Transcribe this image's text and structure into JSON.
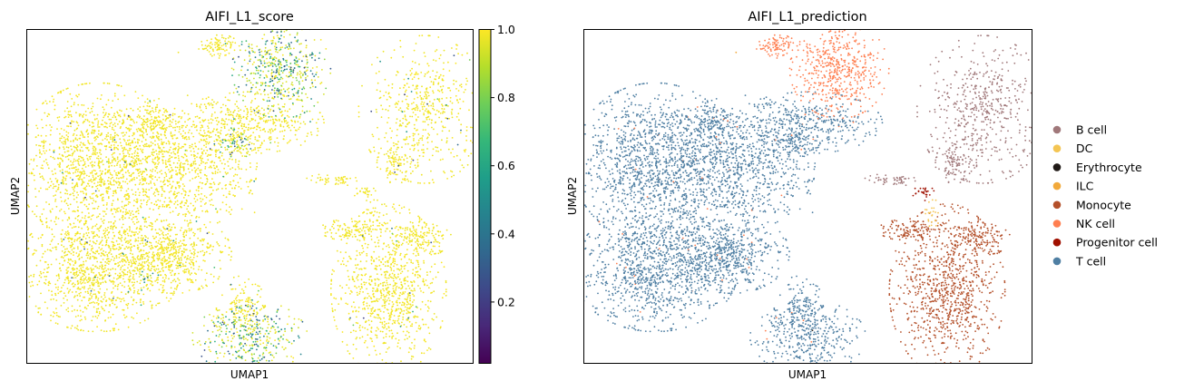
{
  "chart_data": [
    {
      "type": "scatter",
      "title": "AIFI_L1_score",
      "xlabel": "UMAP1",
      "ylabel": "UMAP2",
      "grid": false,
      "color_mode": "continuous",
      "colormap": "viridis",
      "colorbar": {
        "range": [
          0.02,
          1.0
        ],
        "ticks": [
          0.2,
          0.4,
          0.6,
          0.8,
          1.0
        ],
        "tick_labels": [
          "0.2",
          "0.4",
          "0.6",
          "0.8",
          "1.0"
        ],
        "colors": [
          "#440154",
          "#482878",
          "#3e4989",
          "#31688e",
          "#26828e",
          "#1f9e89",
          "#35b779",
          "#6ece58",
          "#b5de2b",
          "#fde725"
        ]
      },
      "xlim": [
        0,
        100
      ],
      "ylim": [
        0,
        100
      ],
      "clusters": [
        {
          "name": "T cell",
          "cx": 16,
          "cy": 60,
          "rx": 10,
          "ry": 13,
          "n": 1300,
          "score_mean": 0.99
        },
        {
          "name": "T cell",
          "cx": 16,
          "cy": 28,
          "rx": 10,
          "ry": 10,
          "n": 1100,
          "score_mean": 0.99
        },
        {
          "name": "T cell",
          "cx": 33,
          "cy": 33,
          "rx": 7,
          "ry": 6.5,
          "n": 550,
          "score_mean": 0.99
        },
        {
          "name": "T cell",
          "cx": 35,
          "cy": 60,
          "rx": 9,
          "ry": 11,
          "n": 600,
          "score_mean": 0.98
        },
        {
          "name": "T cell",
          "cx": 29,
          "cy": 73,
          "rx": 4,
          "ry": 3,
          "n": 120,
          "score_mean": 0.98
        },
        {
          "name": "T cell",
          "cx": 50,
          "cy": 72,
          "rx": 9,
          "ry": 5,
          "n": 400,
          "score_mean": 0.97
        },
        {
          "name": "NK cell",
          "cx": 57,
          "cy": 88,
          "rx": 6,
          "ry": 8,
          "n": 500,
          "score_mean": 0.93
        },
        {
          "name": "NK cell",
          "cx": 43,
          "cy": 95,
          "rx": 2.5,
          "ry": 2,
          "n": 90,
          "score_mean": 0.95
        },
        {
          "name": "T cell",
          "cx": 47,
          "cy": 66,
          "rx": 2.5,
          "ry": 2.5,
          "n": 70,
          "score_mean": 0.85
        },
        {
          "name": "T cell",
          "cx": 48,
          "cy": 17,
          "rx": 3,
          "ry": 5,
          "n": 130,
          "score_mean": 0.95
        },
        {
          "name": "T cell",
          "cx": 50,
          "cy": 8,
          "rx": 7,
          "ry": 6,
          "n": 380,
          "score_mean": 0.85
        },
        {
          "name": "T cell",
          "cx": 27,
          "cy": 26,
          "rx": 1,
          "ry": 1,
          "n": 12,
          "score_mean": 0.6
        },
        {
          "name": "B cell",
          "cx": 89,
          "cy": 76,
          "rx": 8,
          "ry": 12,
          "n": 520,
          "score_mean": 0.99
        },
        {
          "name": "B cell",
          "cx": 83,
          "cy": 60,
          "rx": 2.5,
          "ry": 4,
          "n": 90,
          "score_mean": 0.99
        },
        {
          "name": "B cell",
          "cx": 69,
          "cy": 55,
          "rx": 3.5,
          "ry": 1,
          "n": 50,
          "score_mean": 0.99
        },
        {
          "name": "Monocyte",
          "cx": 81,
          "cy": 22,
          "rx": 7,
          "ry": 14,
          "n": 900,
          "score_mean": 0.99
        },
        {
          "name": "Monocyte",
          "cx": 73,
          "cy": 40,
          "rx": 4,
          "ry": 1.8,
          "n": 120,
          "score_mean": 0.99
        },
        {
          "name": "Monocyte",
          "cx": 89,
          "cy": 38,
          "rx": 3.5,
          "ry": 3,
          "n": 120,
          "score_mean": 0.98
        },
        {
          "name": "Progenitor cell",
          "cx": 76,
          "cy": 51,
          "rx": 1.5,
          "ry": 1.2,
          "n": 25,
          "score_mean": 0.97
        },
        {
          "name": "DC",
          "cx": 77.5,
          "cy": 45,
          "rx": 1,
          "ry": 2.5,
          "n": 25,
          "score_mean": 0.97
        }
      ],
      "categories_in_legend": []
    },
    {
      "type": "scatter",
      "title": "AIFI_L1_prediction",
      "xlabel": "UMAP1",
      "ylabel": "UMAP2",
      "grid": false,
      "color_mode": "categorical",
      "xlim": [
        0,
        100
      ],
      "ylim": [
        0,
        100
      ],
      "legend_position": "right",
      "legend": [
        {
          "label": "B cell",
          "color": "#a0787a"
        },
        {
          "label": "DC",
          "color": "#f4c553"
        },
        {
          "label": "Erythrocyte",
          "color": "#201a17"
        },
        {
          "label": "ILC",
          "color": "#f2a93b"
        },
        {
          "label": "Monocyte",
          "color": "#b4502a"
        },
        {
          "label": "NK cell",
          "color": "#ff7f50"
        },
        {
          "label": "Progenitor cell",
          "color": "#a01000"
        },
        {
          "label": "T cell",
          "color": "#4f7fa3"
        }
      ]
    }
  ]
}
